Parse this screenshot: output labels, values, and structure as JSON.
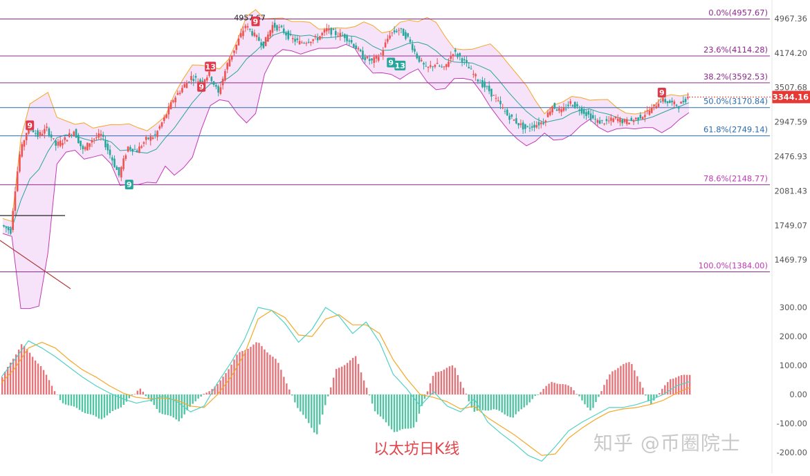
{
  "caption": "以太坊日K线",
  "watermark": "知乎 @币圈院士",
  "colors": {
    "up": "#ef5350",
    "down": "#26a69a",
    "fib_line": "#8e2a8e",
    "fib_blue": "#2b6cb0",
    "bb_band_fill": "#f3d8f7",
    "bb_upper": "#f5a623",
    "bb_lower": "#c23ab5",
    "bb_mid": "#26a69a",
    "macd_line": "#4fd1c5",
    "signal_line": "#f5a623",
    "label_red": "#e0394a",
    "label_green": "#26a69a",
    "current_price_bg": "#e53935"
  },
  "chart_data": [
    {
      "type": "candlestick",
      "title": "",
      "price_axis": {
        "labels": [
          "4967.36",
          "4174.20",
          "3507.68",
          "2947.59",
          "2476.93",
          "2081.43",
          "1749.07",
          "1469.79"
        ],
        "scale": "log"
      },
      "current_price": "3344.16",
      "high_annotation": "4957.67",
      "fib_levels": [
        {
          "ratio": "0.0%",
          "price": 4957.67,
          "label": "0.0%(4957.67)"
        },
        {
          "ratio": "23.6%",
          "price": 4114.28,
          "label": "23.6%(4114.28)"
        },
        {
          "ratio": "38.2%",
          "price": 3592.53,
          "label": "38.2%(3592.53)"
        },
        {
          "ratio": "50.0%",
          "price": 3170.84,
          "label": "50.0%(3170.84)"
        },
        {
          "ratio": "61.8%",
          "price": 2749.14,
          "label": "61.8%(2749.14)"
        },
        {
          "ratio": "78.6%",
          "price": 2148.77,
          "label": "78.6%(2148.77)"
        },
        {
          "ratio": "100.0%",
          "price": 1384.0,
          "label": "100.0%(1384.00)"
        }
      ],
      "td_markers": [
        {
          "text": "9",
          "color": "red",
          "price": 2900
        },
        {
          "text": "9",
          "color": "green",
          "price": 2150
        },
        {
          "text": "9",
          "color": "red",
          "price": 3520
        },
        {
          "text": "13",
          "color": "red",
          "price": 3900
        },
        {
          "text": "9",
          "color": "red",
          "price": 4900
        },
        {
          "text": "9",
          "color": "green",
          "price": 3980
        },
        {
          "text": "13",
          "color": "green",
          "price": 3920
        },
        {
          "text": "9",
          "color": "red",
          "price": 3420
        }
      ],
      "close_path": [
        1750,
        1700,
        2500,
        2900,
        2750,
        2850,
        2620,
        2700,
        2820,
        2550,
        2700,
        2760,
        2500,
        2250,
        2600,
        2550,
        2700,
        2750,
        3000,
        3300,
        3500,
        3700,
        3620,
        3750,
        3400,
        3950,
        4350,
        4800,
        4560,
        4350,
        4800,
        4700,
        4500,
        4400,
        4450,
        4500,
        4700,
        4600,
        4550,
        4350,
        4100,
        4000,
        4150,
        4600,
        4700,
        4500,
        4100,
        3850,
        3950,
        3850,
        4200,
        4050,
        3800,
        3600,
        3450,
        3250,
        3050,
        2950,
        2850,
        2900,
        2950,
        3200,
        3100,
        3250,
        3150,
        3050,
        2950,
        2950,
        3000,
        2950,
        2980,
        3050,
        3150,
        3300,
        3250,
        3200,
        3344
      ]
    },
    {
      "type": "macd",
      "axis_labels": [
        "300.00",
        "200.00",
        "100.00",
        "0.00",
        "-100.00",
        "-200.00"
      ],
      "macd": [
        60,
        120,
        185,
        160,
        130,
        95,
        60,
        30,
        5,
        -15,
        -30,
        -20,
        -5,
        -25,
        -60,
        -40,
        40,
        110,
        190,
        300,
        290,
        245,
        180,
        225,
        300,
        270,
        210,
        250,
        180,
        70,
        20,
        -40,
        10,
        -40,
        -60,
        -15,
        -95,
        -135,
        -170,
        -210,
        -230,
        -180,
        -125,
        -95,
        -70,
        -45,
        -45,
        -35,
        -20,
        0,
        30,
        45
      ],
      "signal": [
        40,
        90,
        160,
        180,
        160,
        120,
        85,
        60,
        30,
        5,
        -10,
        -15,
        -12,
        -20,
        -40,
        -45,
        0,
        60,
        140,
        260,
        290,
        265,
        205,
        200,
        260,
        275,
        240,
        240,
        210,
        120,
        55,
        0,
        -10,
        -25,
        -50,
        -40,
        -80,
        -110,
        -140,
        -175,
        -210,
        -205,
        -150,
        -115,
        -85,
        -60,
        -50,
        -45,
        -35,
        -20,
        5,
        25
      ],
      "histogram": [
        60,
        175,
        95,
        -25,
        -55,
        -85,
        -45,
        20,
        -60,
        -90,
        -10,
        35,
        140,
        180,
        115,
        -40,
        -140,
        85,
        130,
        -60,
        -130,
        -110,
        75,
        100,
        -60,
        -50,
        -80,
        -15,
        45,
        25,
        -60,
        80,
        115,
        -40,
        55,
        70
      ]
    }
  ]
}
